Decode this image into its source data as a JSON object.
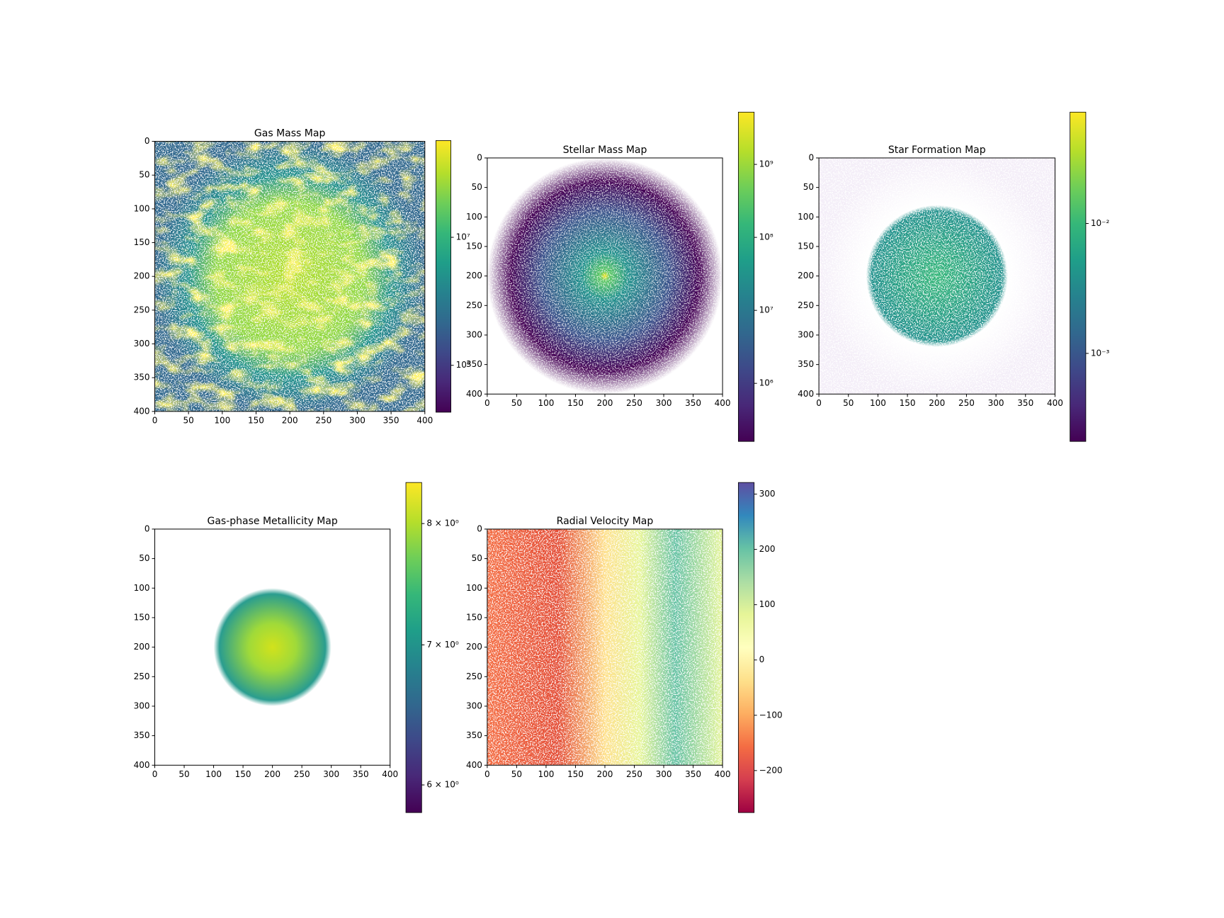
{
  "chart_data": [
    {
      "type": "image",
      "title": "Gas Mass Map",
      "xlim": [
        0,
        400
      ],
      "ylim": [
        400,
        0
      ],
      "xticks": [
        0,
        50,
        100,
        150,
        200,
        250,
        300,
        350,
        400
      ],
      "yticks": [
        0,
        50,
        100,
        150,
        200,
        250,
        300,
        350,
        400
      ],
      "colorbar": {
        "colormap": "viridis",
        "log": true,
        "lim": [
          430000,
          57000000
        ],
        "ticks": [
          {
            "value": 1000000,
            "label": "10⁶"
          },
          {
            "value": 10000000,
            "label": "10⁷"
          }
        ]
      }
    },
    {
      "type": "image",
      "title": "Stellar Mass Map",
      "xlim": [
        0,
        400
      ],
      "ylim": [
        400,
        0
      ],
      "xticks": [
        0,
        50,
        100,
        150,
        200,
        250,
        300,
        350,
        400
      ],
      "yticks": [
        0,
        50,
        100,
        150,
        200,
        250,
        300,
        350,
        400
      ],
      "colorbar": {
        "colormap": "viridis",
        "log": true,
        "lim": [
          160000,
          5200000000
        ],
        "ticks": [
          {
            "value": 1000000,
            "label": "10⁶"
          },
          {
            "value": 10000000,
            "label": "10⁷"
          },
          {
            "value": 100000000,
            "label": "10⁸"
          },
          {
            "value": 1000000000,
            "label": "10⁹"
          }
        ]
      }
    },
    {
      "type": "image",
      "title": "Star Formation Map",
      "xlim": [
        0,
        400
      ],
      "ylim": [
        400,
        0
      ],
      "xticks": [
        0,
        50,
        100,
        150,
        200,
        250,
        300,
        350,
        400
      ],
      "yticks": [
        0,
        50,
        100,
        150,
        200,
        250,
        300,
        350,
        400
      ],
      "colorbar": {
        "colormap": "viridis",
        "log": true,
        "lim": [
          0.00021,
          0.072
        ],
        "ticks": [
          {
            "value": 0.001,
            "label": "10⁻³"
          },
          {
            "value": 0.01,
            "label": "10⁻²"
          }
        ]
      }
    },
    {
      "type": "image",
      "title": "Gas-phase Metallicity Map",
      "xlim": [
        0,
        400
      ],
      "ylim": [
        400,
        0
      ],
      "xticks": [
        0,
        50,
        100,
        150,
        200,
        250,
        300,
        350,
        400
      ],
      "yticks": [
        0,
        50,
        100,
        150,
        200,
        250,
        300,
        350,
        400
      ],
      "colorbar": {
        "colormap": "viridis",
        "log": true,
        "lim": [
          5.82,
          8.37
        ],
        "ticks": [
          {
            "value": 6,
            "label": "6 × 10⁰"
          },
          {
            "value": 7,
            "label": "7 × 10⁰"
          },
          {
            "value": 8,
            "label": "8 × 10⁰"
          }
        ]
      }
    },
    {
      "type": "image",
      "title": "Radial Velocity Map",
      "xlim": [
        0,
        400
      ],
      "ylim": [
        400,
        0
      ],
      "xticks": [
        0,
        50,
        100,
        150,
        200,
        250,
        300,
        350,
        400
      ],
      "yticks": [
        0,
        50,
        100,
        150,
        200,
        250,
        300,
        350,
        400
      ],
      "colorbar": {
        "colormap": "Spectral",
        "log": false,
        "lim": [
          -276,
          321
        ],
        "ticks": [
          {
            "value": -200,
            "label": "−200"
          },
          {
            "value": -100,
            "label": "−100"
          },
          0,
          100,
          200,
          300
        ]
      }
    }
  ]
}
